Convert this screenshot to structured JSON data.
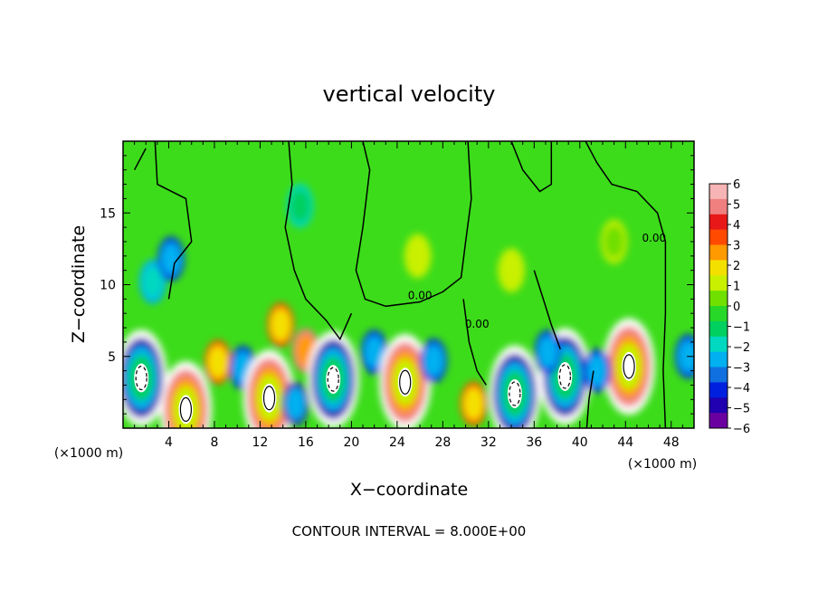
{
  "chart_data": {
    "type": "heatmap",
    "title": "vertical velocity",
    "xlabel": "X−coordinate",
    "ylabel": "Z−coordinate",
    "x_unit_left": "(×1000 m)",
    "x_unit_right": "(×1000 m)",
    "footer": "CONTOUR INTERVAL = 8.000E+00",
    "xlim": [
      0,
      50
    ],
    "ylim": [
      0,
      20
    ],
    "x_ticks": [
      "4",
      "8",
      "12",
      "16",
      "20",
      "24",
      "28",
      "32",
      "36",
      "40",
      "44",
      "48"
    ],
    "y_ticks": [
      "5",
      "10",
      "15"
    ],
    "colorbar": {
      "ticks": [
        "6",
        "5",
        "4",
        "3",
        "2",
        "1",
        "0",
        "−1",
        "−2",
        "−3",
        "−4",
        "−5",
        "−6"
      ],
      "range": [
        -6,
        6
      ],
      "colors": [
        "#f7b4b4",
        "#f08080",
        "#e81818",
        "#ff4a00",
        "#ff9a00",
        "#f4e000",
        "#c8f000",
        "#70e000",
        "#28d828",
        "#00d060",
        "#00d8c0",
        "#00b0f0",
        "#1070e0",
        "#0020e0",
        "#2000b0",
        "#6a00a0"
      ]
    },
    "contour_labels": [
      {
        "text": "0.00",
        "x": 26,
        "y": 9
      },
      {
        "text": "0.00",
        "x": 31,
        "y": 7
      },
      {
        "text": "0.00",
        "x": 46.5,
        "y": 13
      }
    ],
    "features": [
      {
        "x": 1.6,
        "y": 3.5,
        "w": -7
      },
      {
        "x": 5.5,
        "y": 1.3,
        "w": 6
      },
      {
        "x": 8.3,
        "y": 4.6,
        "w": 4
      },
      {
        "x": 10.5,
        "y": 4.2,
        "w": -4
      },
      {
        "x": 12.8,
        "y": 2.1,
        "w": 7
      },
      {
        "x": 13.8,
        "y": 7.2,
        "w": 4
      },
      {
        "x": 15.1,
        "y": 1.7,
        "w": -5
      },
      {
        "x": 16,
        "y": 5.4,
        "w": 5
      },
      {
        "x": 18.4,
        "y": 3.4,
        "w": -6
      },
      {
        "x": 22,
        "y": 5.3,
        "w": -4
      },
      {
        "x": 24.7,
        "y": 3.2,
        "w": 7
      },
      {
        "x": 27.2,
        "y": 4.7,
        "w": -4
      },
      {
        "x": 30.7,
        "y": 1.7,
        "w": 4
      },
      {
        "x": 34.3,
        "y": 2.4,
        "w": -6
      },
      {
        "x": 38.7,
        "y": 3.6,
        "w": -6
      },
      {
        "x": 37.2,
        "y": 5.3,
        "w": -4
      },
      {
        "x": 44.3,
        "y": 4.3,
        "w": 7
      },
      {
        "x": 41.5,
        "y": 4,
        "w": -4
      },
      {
        "x": 49.5,
        "y": 5,
        "w": -4
      },
      {
        "x": 2.6,
        "y": 10.2,
        "w": -3
      },
      {
        "x": 4.2,
        "y": 11.8,
        "w": -4
      },
      {
        "x": 15.5,
        "y": 15.5,
        "w": -2
      },
      {
        "x": 25.8,
        "y": 12,
        "w": 1.5
      },
      {
        "x": 34,
        "y": 11,
        "w": 1.5
      },
      {
        "x": 43,
        "y": 13,
        "w": 1
      }
    ]
  }
}
